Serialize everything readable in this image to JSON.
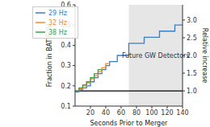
{
  "chart_data": {
    "type": "line",
    "xlabel": "Seconds Prior to Merger",
    "ylabel": "Fraction in BAT FOV",
    "y2label": "Relative increase",
    "xlim": [
      0,
      140
    ],
    "xticks": [
      20,
      40,
      60,
      80,
      100,
      120,
      140
    ],
    "ylim": [
      0.1,
      0.6
    ],
    "yticks": [
      0.1,
      0.2,
      0.3,
      0.4,
      0.5,
      0.6
    ],
    "y2lim": [
      0.57,
      3.43
    ],
    "y2ticks": [
      {
        "value": 1,
        "label": "1.0"
      },
      {
        "value": 1.5,
        "label": "1.5"
      },
      {
        "value": 2,
        "label": "2.0"
      },
      {
        "value": 2.5,
        "label": "2.5"
      },
      {
        "value": 3,
        "label": "3.0"
      }
    ],
    "line_style": "step",
    "legend": "upper left",
    "reference_line": {
      "axis": "y2",
      "value": 1,
      "color": "#000000"
    },
    "shaded_region": {
      "x": [
        70,
        140
      ],
      "label": "Future GW Detectors",
      "color": "#e6e6e6"
    },
    "series": [
      {
        "name": "29 Hz",
        "color": "#3b7dc4",
        "x": [
          0,
          5,
          10,
          15,
          20,
          25,
          30,
          35,
          40,
          45,
          55,
          70,
          90,
          110,
          130,
          140
        ],
        "values": [
          0.17,
          0.18,
          0.19,
          0.2,
          0.22,
          0.24,
          0.26,
          0.28,
          0.3,
          0.32,
          0.35,
          0.41,
          0.44,
          0.47,
          0.5,
          0.5
        ]
      },
      {
        "name": "32 Hz",
        "color": "#f28e2b",
        "x": [
          0,
          5,
          10,
          15,
          20,
          25,
          30,
          35,
          40,
          45
        ],
        "values": [
          0.175,
          0.185,
          0.2,
          0.215,
          0.235,
          0.25,
          0.27,
          0.29,
          0.31,
          0.31
        ]
      },
      {
        "name": "38 Hz",
        "color": "#3aa34a",
        "x": [
          0,
          5,
          10,
          15,
          20,
          25,
          30,
          35
        ],
        "values": [
          0.175,
          0.19,
          0.205,
          0.22,
          0.24,
          0.26,
          0.28,
          0.28
        ]
      }
    ]
  }
}
